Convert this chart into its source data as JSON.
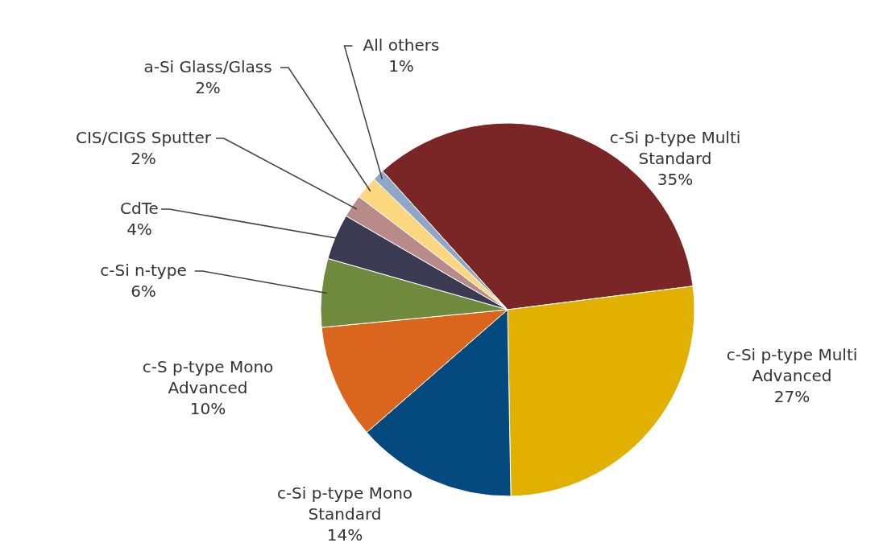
{
  "chart_data": {
    "type": "pie",
    "categories": [
      "c-Si p-type Multi Standard",
      "c-Si p-type Multi Advanced",
      "c-Si p-type Mono Standard",
      "c-S p-type Mono Advanced",
      "c-Si n-type",
      "CdTe",
      "CIS/CIGS Sputter",
      "a-Si Glass/Glass",
      "All others"
    ],
    "values": [
      35,
      27,
      14,
      10,
      6,
      4,
      2,
      2,
      1
    ],
    "value_labels": [
      "35%",
      "27%",
      "14%",
      "10%",
      "6%",
      "4%",
      "2%",
      "2%",
      "1%"
    ],
    "colors": [
      "#7a2626",
      "#e1b000",
      "#054a7f",
      "#d9661c",
      "#6f8a3c",
      "#3a3a52",
      "#b88a8a",
      "#fcd77f",
      "#8fa6c7"
    ]
  }
}
